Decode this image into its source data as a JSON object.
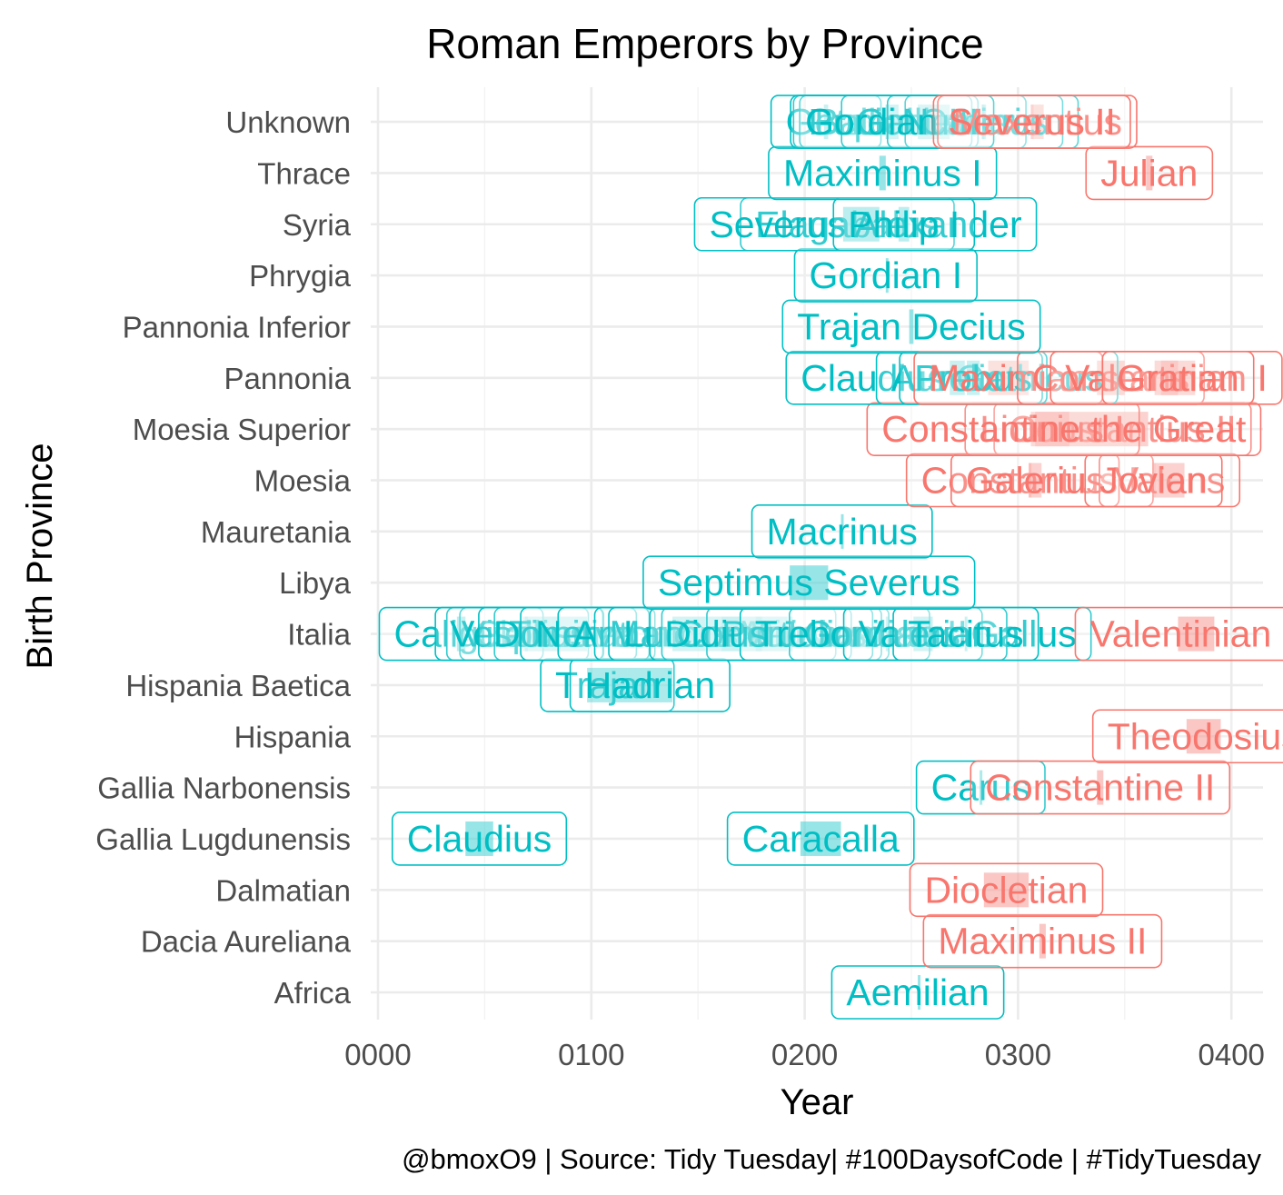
{
  "chart_data": {
    "type": "bar",
    "title": "Roman Emperors by Province",
    "xlabel": "Year",
    "ylabel": "Birth Province",
    "caption": "@bmoxO9 | Source: Tidy Tuesday|  #100DaysofCode | #TidyTuesday",
    "x_ticks": [
      "0000",
      "0100",
      "0200",
      "0300",
      "0400"
    ],
    "x_tick_values": [
      0,
      100,
      200,
      300,
      400
    ],
    "xlim": [
      -3,
      415
    ],
    "grid": true,
    "legend": "none",
    "provinces": [
      "Africa",
      "Dacia Aureliana",
      "Dalmatian",
      "Gallia Lugdunensis",
      "Gallia Narbonensis",
      "Hispania",
      "Hispania Baetica",
      "Italia",
      "Libya",
      "Mauretania",
      "Moesia",
      "Moesia Superior",
      "Pannonia",
      "Pannonia Inferior",
      "Phrygia",
      "Syria",
      "Thrace",
      "Unknown"
    ],
    "colors": {
      "principate": "#00BFC4",
      "dominate": "#F8766D"
    },
    "series": [
      {
        "name": "Aemilian",
        "province": "Africa",
        "start": 253,
        "end": 253,
        "group": "principate"
      },
      {
        "name": "Maximinus II",
        "province": "Dacia Aureliana",
        "start": 310,
        "end": 313,
        "group": "dominate"
      },
      {
        "name": "Diocletian",
        "province": "Dalmatian",
        "start": 284,
        "end": 305,
        "group": "dominate"
      },
      {
        "name": "Claudius",
        "province": "Gallia Lugdunensis",
        "start": 41,
        "end": 54,
        "group": "principate"
      },
      {
        "name": "Caracalla",
        "province": "Gallia Lugdunensis",
        "start": 198,
        "end": 217,
        "group": "principate"
      },
      {
        "name": "Carus",
        "province": "Gallia Narbonensis",
        "start": 282,
        "end": 283,
        "group": "principate"
      },
      {
        "name": "Constantine II",
        "province": "Gallia Narbonensis",
        "start": 337,
        "end": 340,
        "group": "dominate"
      },
      {
        "name": "Theodosius",
        "province": "Hispania",
        "start": 379,
        "end": 395,
        "group": "dominate"
      },
      {
        "name": "Trajan",
        "province": "Hispania Baetica",
        "start": 98,
        "end": 117,
        "group": "principate"
      },
      {
        "name": "Hadrian",
        "province": "Hispania Baetica",
        "start": 117,
        "end": 138,
        "group": "principate"
      },
      {
        "name": "Caligula",
        "province": "Italia",
        "start": 37,
        "end": 41,
        "group": "principate"
      },
      {
        "name": "Galba",
        "province": "Italia",
        "start": 68,
        "end": 69,
        "group": "principate"
      },
      {
        "name": "Vitellius",
        "province": "Italia",
        "start": 69,
        "end": 69,
        "group": "principate"
      },
      {
        "name": "Vespasian",
        "province": "Italia",
        "start": 69,
        "end": 79,
        "group": "principate"
      },
      {
        "name": "Titus",
        "province": "Italia",
        "start": 79,
        "end": 81,
        "group": "principate"
      },
      {
        "name": "Domitian",
        "province": "Italia",
        "start": 81,
        "end": 96,
        "group": "principate"
      },
      {
        "name": "Nerva",
        "province": "Italia",
        "start": 96,
        "end": 98,
        "group": "principate"
      },
      {
        "name": "Antoninus Pius",
        "province": "Italia",
        "start": 138,
        "end": 161,
        "group": "principate"
      },
      {
        "name": "Marcus Aurelius",
        "province": "Italia",
        "start": 161,
        "end": 180,
        "group": "principate"
      },
      {
        "name": "Lucius Verus",
        "province": "Italia",
        "start": 161,
        "end": 169,
        "group": "principate"
      },
      {
        "name": "Commodus",
        "province": "Italia",
        "start": 177,
        "end": 192,
        "group": "principate"
      },
      {
        "name": "Pertinax",
        "province": "Italia",
        "start": 193,
        "end": 193,
        "group": "principate"
      },
      {
        "name": "Didius Julianus",
        "province": "Italia",
        "start": 193,
        "end": 193,
        "group": "principate"
      },
      {
        "name": "Gordian II",
        "province": "Italia",
        "start": 238,
        "end": 238,
        "group": "principate"
      },
      {
        "name": "Trebonianus Gallus",
        "province": "Italia",
        "start": 251,
        "end": 253,
        "group": "principate"
      },
      {
        "name": "Valerian",
        "province": "Italia",
        "start": 253,
        "end": 260,
        "group": "principate"
      },
      {
        "name": "Tacitus",
        "province": "Italia",
        "start": 275,
        "end": 276,
        "group": "principate"
      },
      {
        "name": "Valentinian II",
        "province": "Italia",
        "start": 375,
        "end": 392,
        "group": "dominate"
      },
      {
        "name": "Septimus Severus",
        "province": "Libya",
        "start": 193,
        "end": 211,
        "group": "principate"
      },
      {
        "name": "Macrinus",
        "province": "Mauretania",
        "start": 217,
        "end": 218,
        "group": "principate"
      },
      {
        "name": "Constantius I",
        "province": "Moesia",
        "start": 305,
        "end": 306,
        "group": "dominate"
      },
      {
        "name": "Galerius",
        "province": "Moesia",
        "start": 305,
        "end": 311,
        "group": "dominate"
      },
      {
        "name": "Valens",
        "province": "Moesia",
        "start": 364,
        "end": 378,
        "group": "dominate"
      },
      {
        "name": "Jovian",
        "province": "Moesia",
        "start": 363,
        "end": 364,
        "group": "dominate"
      },
      {
        "name": "Constantius II",
        "province": "Moesia Superior",
        "start": 337,
        "end": 361,
        "group": "dominate"
      },
      {
        "name": "Licinius I",
        "province": "Moesia Superior",
        "start": 308,
        "end": 324,
        "group": "dominate"
      },
      {
        "name": "Constantine the Great",
        "province": "Moesia Superior",
        "start": 306,
        "end": 337,
        "group": "dominate"
      },
      {
        "name": "Claudius Gothicus",
        "province": "Pannonia",
        "start": 268,
        "end": 270,
        "group": "principate"
      },
      {
        "name": "Aurelian",
        "province": "Pannonia",
        "start": 270,
        "end": 275,
        "group": "principate"
      },
      {
        "name": "Probus",
        "province": "Pannonia",
        "start": 276,
        "end": 282,
        "group": "principate"
      },
      {
        "name": "Maximian",
        "province": "Pannonia",
        "start": 286,
        "end": 305,
        "group": "dominate"
      },
      {
        "name": "Constans",
        "province": "Pannonia",
        "start": 337,
        "end": 350,
        "group": "dominate"
      },
      {
        "name": "Valentinian I",
        "province": "Pannonia",
        "start": 364,
        "end": 375,
        "group": "dominate"
      },
      {
        "name": "Gratian",
        "province": "Pannonia",
        "start": 367,
        "end": 383,
        "group": "dominate"
      },
      {
        "name": "Trajan Decius",
        "province": "Pannonia Inferior",
        "start": 249,
        "end": 251,
        "group": "principate"
      },
      {
        "name": "Gordian I",
        "province": "Phrygia",
        "start": 238,
        "end": 238,
        "group": "principate"
      },
      {
        "name": "Elagabalus",
        "province": "Syria",
        "start": 218,
        "end": 222,
        "group": "principate"
      },
      {
        "name": "Severus Alexander",
        "province": "Syria",
        "start": 222,
        "end": 235,
        "group": "principate"
      },
      {
        "name": "Philip I",
        "province": "Syria",
        "start": 244,
        "end": 249,
        "group": "principate"
      },
      {
        "name": "Maximinus I",
        "province": "Thrace",
        "start": 235,
        "end": 238,
        "group": "principate"
      },
      {
        "name": "Julian",
        "province": "Thrace",
        "start": 360,
        "end": 363,
        "group": "dominate"
      },
      {
        "name": "Geta",
        "province": "Unknown",
        "start": 209,
        "end": 211,
        "group": "principate"
      },
      {
        "name": "Balbinus",
        "province": "Unknown",
        "start": 238,
        "end": 238,
        "group": "principate"
      },
      {
        "name": "Pupienus",
        "province": "Unknown",
        "start": 238,
        "end": 238,
        "group": "principate"
      },
      {
        "name": "Gallienus",
        "province": "Unknown",
        "start": 253,
        "end": 268,
        "group": "principate"
      },
      {
        "name": "Carinus",
        "province": "Unknown",
        "start": 283,
        "end": 285,
        "group": "principate"
      },
      {
        "name": "Numerian",
        "province": "Unknown",
        "start": 283,
        "end": 284,
        "group": "principate"
      },
      {
        "name": "Gordian III",
        "province": "Unknown",
        "start": 238,
        "end": 244,
        "group": "principate"
      },
      {
        "name": "Maxentius",
        "province": "Unknown",
        "start": 306,
        "end": 312,
        "group": "dominate"
      },
      {
        "name": "Severus II",
        "province": "Unknown",
        "start": 306,
        "end": 307,
        "group": "dominate"
      }
    ]
  }
}
